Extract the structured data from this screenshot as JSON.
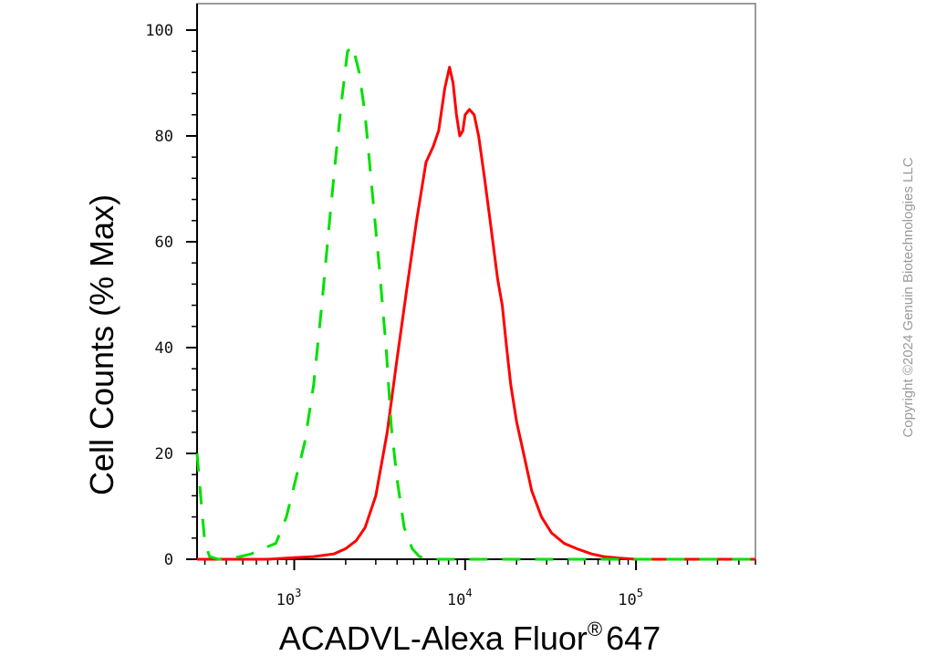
{
  "chart_data": {
    "type": "line",
    "title": "",
    "xlabel": "ACADVL-Alexa Fluor",
    "xlabel_superscript": "®",
    "xlabel_suffix": "647",
    "ylabel": "Cell Counts (% Max)",
    "x_scale": "log",
    "xlim": [
      270,
      500000
    ],
    "ylim": [
      0,
      105
    ],
    "y_ticks": [
      0,
      20,
      40,
      60,
      80,
      100
    ],
    "x_ticks": [
      {
        "value": 1000,
        "base": "10",
        "exp": "3"
      },
      {
        "value": 10000,
        "base": "10",
        "exp": "4"
      },
      {
        "value": 100000,
        "base": "10",
        "exp": "5"
      }
    ],
    "grid": false,
    "legend": "none",
    "series": [
      {
        "color": "#ff0000",
        "style": "solid",
        "x": [
          270,
          700,
          1000,
          1300,
          1700,
          2000,
          2300,
          2600,
          3000,
          3500,
          4000,
          4600,
          5200,
          5900,
          6500,
          7000,
          7600,
          8100,
          8500,
          8900,
          9300,
          9700,
          10000,
          10600,
          11300,
          12000,
          13000,
          14000,
          15500,
          16500,
          17500,
          18500,
          20000,
          22000,
          24500,
          28000,
          32000,
          38000,
          45000,
          55000,
          65000,
          80000,
          100000,
          500000
        ],
        "y": [
          0,
          0,
          0.3,
          0.5,
          1,
          2,
          3.5,
          6,
          12,
          24,
          38,
          52,
          64,
          75,
          78,
          81,
          89,
          93,
          90,
          84,
          80,
          81,
          84,
          85,
          84,
          80,
          72,
          64,
          53,
          48,
          40,
          33,
          26,
          20,
          13,
          8,
          5,
          3,
          2,
          1,
          0.5,
          0.2,
          0,
          0
        ]
      },
      {
        "color": "#00e000",
        "style": "dashed",
        "x": [
          270,
          285,
          300,
          320,
          360,
          450,
          560,
          650,
          780,
          900,
          1000,
          1150,
          1300,
          1450,
          1600,
          1750,
          1900,
          2050,
          2200,
          2400,
          2600,
          2850,
          3150,
          3450,
          3700,
          4000,
          4400,
          4900,
          5400,
          6200,
          8000,
          500000
        ],
        "y": [
          20,
          11,
          3,
          0.5,
          0,
          0.3,
          1,
          2,
          3,
          8,
          14,
          22,
          33,
          48,
          63,
          76,
          87,
          96,
          97,
          92,
          84,
          70,
          55,
          40,
          25,
          15,
          6,
          2,
          0.5,
          0,
          0,
          0
        ]
      }
    ]
  },
  "copyright": "Copyright ©2024 Genuin Biotechnologies LLC"
}
